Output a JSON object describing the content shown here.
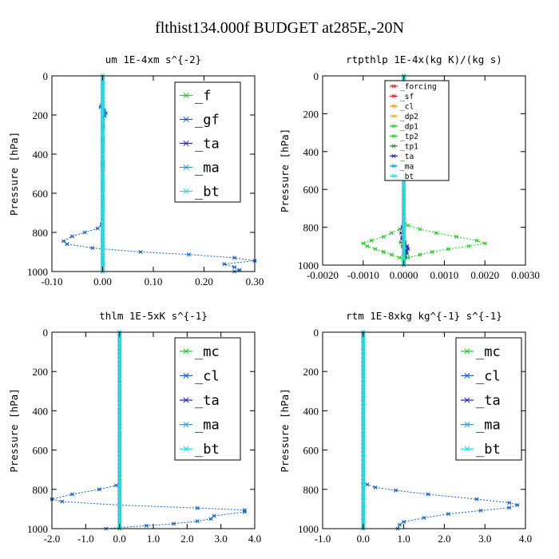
{
  "figure": {
    "title": "flthist134.000f  BUDGET at285E,-20N"
  },
  "colors": {
    "green": "#22cc22",
    "blue": "#1060c8",
    "deepskyblue": "#00a8e0",
    "navy": "#2020d0",
    "red": "#e02020",
    "orange": "#ff9900",
    "yellow": "#e0c000",
    "darkgreen": "#2a8a2a",
    "teal": "#118899",
    "cyan": "#22dddd"
  },
  "chart_data": [
    {
      "type": "line",
      "title": "um   1E-4xm s^{-2}",
      "ylabel": "Pressure [hPa]",
      "xlim": [
        -0.1,
        0.3
      ],
      "ylim": [
        0,
        1000
      ],
      "y_inverted": true,
      "xticks": [
        "-0.10",
        "0.00",
        "0.10",
        "0.20",
        "0.30"
      ],
      "xtick_values": [
        -0.1,
        0.0,
        0.1,
        0.2,
        0.3
      ],
      "yticks": [
        "0",
        "200",
        "400",
        "600",
        "800",
        "1000"
      ],
      "ytick_values": [
        0,
        200,
        400,
        600,
        800,
        1000
      ],
      "legend": [
        "_f",
        "_gf",
        "_ta",
        "_ma",
        "_bt"
      ],
      "legend_size": "large",
      "series": [
        {
          "name": "_f",
          "color": "green",
          "y": [
            0,
            1000
          ],
          "x": [
            0,
            0
          ]
        },
        {
          "name": "_gf",
          "color": "blue",
          "y": [
            0,
            100,
            150,
            160,
            175,
            190,
            205,
            260,
            330,
            450,
            600,
            760,
            780,
            800,
            820,
            845,
            860,
            880,
            900,
            913,
            930,
            945,
            962,
            978,
            992,
            1000
          ],
          "x": [
            0,
            0,
            -0.002,
            -0.004,
            0.003,
            0.006,
            0.004,
            0.001,
            0,
            0,
            0,
            -0.002,
            -0.01,
            -0.035,
            -0.06,
            -0.077,
            -0.07,
            -0.02,
            0.075,
            0.17,
            0.26,
            0.3,
            0.24,
            0.26,
            0.27,
            0.26
          ]
        },
        {
          "name": "_ta",
          "color": "navy",
          "y": [
            0,
            1000
          ],
          "x": [
            0,
            0
          ]
        },
        {
          "name": "_ma",
          "color": "deepskyblue",
          "y": [
            0,
            1000
          ],
          "x": [
            0,
            0
          ]
        },
        {
          "name": "_bt",
          "color": "cyan",
          "y": [
            0,
            1000
          ],
          "x": [
            0,
            0
          ]
        }
      ]
    },
    {
      "type": "line",
      "title": "rtpthlp   1E-4x(kg K)/(kg s)",
      "ylabel": "Pressure [hPa]",
      "xlim": [
        -0.002,
        0.003
      ],
      "ylim": [
        0,
        1000
      ],
      "y_inverted": true,
      "xticks": [
        "-0.0020",
        "-0.0010",
        "0.0000",
        "0.0010",
        "0.0020",
        "0.0030"
      ],
      "xtick_values": [
        -0.002,
        -0.001,
        0.0,
        0.001,
        0.002,
        0.003
      ],
      "yticks": [
        "0",
        "200",
        "400",
        "600",
        "800",
        "1000"
      ],
      "ytick_values": [
        0,
        200,
        400,
        600,
        800,
        1000
      ],
      "legend": [
        "_forcing",
        "_sf",
        "_cl",
        "_dp2",
        "_dp1",
        "_tp2",
        "_tp1",
        "_ta",
        "_ma",
        "_bt"
      ],
      "legend_size": "small",
      "series": [
        {
          "name": "_forcing",
          "color": "red",
          "y": [
            0,
            1000
          ],
          "x": [
            0,
            0
          ]
        },
        {
          "name": "_sf",
          "color": "red",
          "y": [
            0,
            1000
          ],
          "x": [
            0,
            0
          ]
        },
        {
          "name": "_cl",
          "color": "orange",
          "y": [
            0,
            1000
          ],
          "x": [
            0,
            0
          ]
        },
        {
          "name": "_dp2",
          "color": "yellow",
          "y": [
            0,
            1000
          ],
          "x": [
            0,
            0
          ]
        },
        {
          "name": "_dp1",
          "color": "green",
          "y": [
            0,
            760,
            790,
            810,
            830,
            850,
            870,
            885,
            900,
            915,
            930,
            945,
            960,
            975,
            1000
          ],
          "x": [
            0,
            0,
            0.0001,
            0.0004,
            0.0008,
            0.0013,
            0.0018,
            0.002,
            0.0016,
            0.0011,
            0.0007,
            0.0004,
            0.0001,
            0,
            0
          ]
        },
        {
          "name": "_tp2",
          "color": "green",
          "y": [
            0,
            790,
            810,
            830,
            850,
            870,
            885,
            900,
            915,
            930,
            945,
            960,
            975,
            1000
          ],
          "x": [
            0,
            0,
            -0.0001,
            -0.0003,
            -0.0005,
            -0.0008,
            -0.001,
            -0.0009,
            -0.0007,
            -0.0005,
            -0.0003,
            -0.0001,
            0,
            0
          ]
        },
        {
          "name": "_tp1",
          "color": "darkgreen",
          "y": [
            0,
            820,
            850,
            880,
            900,
            920,
            940,
            960,
            1000
          ],
          "x": [
            0,
            0,
            -3e-05,
            -7e-05,
            -3e-05,
            4e-05,
            8e-05,
            3e-05,
            0
          ]
        },
        {
          "name": "_ta",
          "color": "navy",
          "y": [
            0,
            800,
            830,
            860,
            880,
            900,
            915,
            930,
            950,
            1000
          ],
          "x": [
            0,
            -3e-05,
            -6e-05,
            -4e-05,
            2e-05,
            8e-05,
            0.0001,
            6e-05,
            2e-05,
            0
          ]
        },
        {
          "name": "_ma",
          "color": "deepskyblue",
          "y": [
            0,
            1000
          ],
          "x": [
            0,
            0
          ]
        },
        {
          "name": "_bt",
          "color": "cyan",
          "y": [
            0,
            1000
          ],
          "x": [
            0,
            0
          ]
        }
      ]
    },
    {
      "type": "line",
      "title": "thlm   1E-5xK s^{-1}",
      "ylabel": "Pressure [hPa]",
      "xlim": [
        -2.0,
        4.0
      ],
      "ylim": [
        0,
        1000
      ],
      "y_inverted": true,
      "xticks": [
        "-2.0",
        "-1.0",
        "0.0",
        "1.0",
        "2.0",
        "3.0",
        "4.0"
      ],
      "xtick_values": [
        -2,
        -1,
        0,
        1,
        2,
        3,
        4
      ],
      "yticks": [
        "0",
        "200",
        "400",
        "600",
        "800",
        "1000"
      ],
      "ytick_values": [
        0,
        200,
        400,
        600,
        800,
        1000
      ],
      "legend": [
        "_mc",
        "_cl",
        "_ta",
        "_ma",
        "_bt"
      ],
      "legend_size": "large",
      "series": [
        {
          "name": "_mc",
          "color": "green",
          "y": [
            0,
            1000
          ],
          "x": [
            0,
            0
          ]
        },
        {
          "name": "_cl",
          "color": "blue",
          "y": [
            0,
            760,
            780,
            800,
            825,
            850,
            862,
            880,
            895,
            905,
            915,
            935,
            950,
            962,
            975,
            985,
            1000
          ],
          "x": [
            0,
            0,
            -0.1,
            -0.6,
            -1.4,
            -2.0,
            -1.7,
            0.0,
            2.3,
            3.7,
            3.7,
            2.8,
            2.7,
            2.3,
            1.6,
            0.8,
            -0.4
          ]
        },
        {
          "name": "_ta",
          "color": "navy",
          "y": [
            0,
            1000
          ],
          "x": [
            0,
            0
          ]
        },
        {
          "name": "_ma",
          "color": "deepskyblue",
          "y": [
            0,
            1000
          ],
          "x": [
            0,
            0
          ]
        },
        {
          "name": "_bt",
          "color": "cyan",
          "y": [
            0,
            1000
          ],
          "x": [
            0,
            0
          ]
        }
      ]
    },
    {
      "type": "line",
      "title": "rtm   1E-8xkg kg^{-1} s^{-1}",
      "ylabel": "Pressure [hPa]",
      "xlim": [
        -1.0,
        4.0
      ],
      "ylim": [
        0,
        1000
      ],
      "y_inverted": true,
      "xticks": [
        "-1.0",
        "0.0",
        "1.0",
        "2.0",
        "3.0",
        "4.0"
      ],
      "xtick_values": [
        -1,
        0,
        1,
        2,
        3,
        4
      ],
      "yticks": [
        "0",
        "200",
        "400",
        "600",
        "800",
        "1000"
      ],
      "ytick_values": [
        0,
        200,
        400,
        600,
        800,
        1000
      ],
      "legend": [
        "_mc",
        "_cl",
        "_ta",
        "_ma",
        "_bt"
      ],
      "legend_size": "large",
      "series": [
        {
          "name": "_mc",
          "color": "green",
          "y": [
            0,
            1000
          ],
          "x": [
            0,
            0
          ]
        },
        {
          "name": "_cl",
          "color": "blue",
          "y": [
            0,
            760,
            775,
            790,
            805,
            825,
            850,
            868,
            880,
            893,
            908,
            925,
            945,
            965,
            980,
            1000
          ],
          "x": [
            0,
            0,
            0.1,
            0.3,
            0.8,
            1.6,
            2.8,
            3.6,
            3.8,
            3.6,
            2.9,
            2.1,
            1.5,
            1.0,
            0.9,
            0.85
          ]
        },
        {
          "name": "_ta",
          "color": "navy",
          "y": [
            0,
            1000
          ],
          "x": [
            0,
            0
          ]
        },
        {
          "name": "_ma",
          "color": "deepskyblue",
          "y": [
            0,
            1000
          ],
          "x": [
            0,
            0
          ]
        },
        {
          "name": "_bt",
          "color": "cyan",
          "y": [
            0,
            1000
          ],
          "x": [
            0,
            0
          ]
        }
      ]
    }
  ]
}
